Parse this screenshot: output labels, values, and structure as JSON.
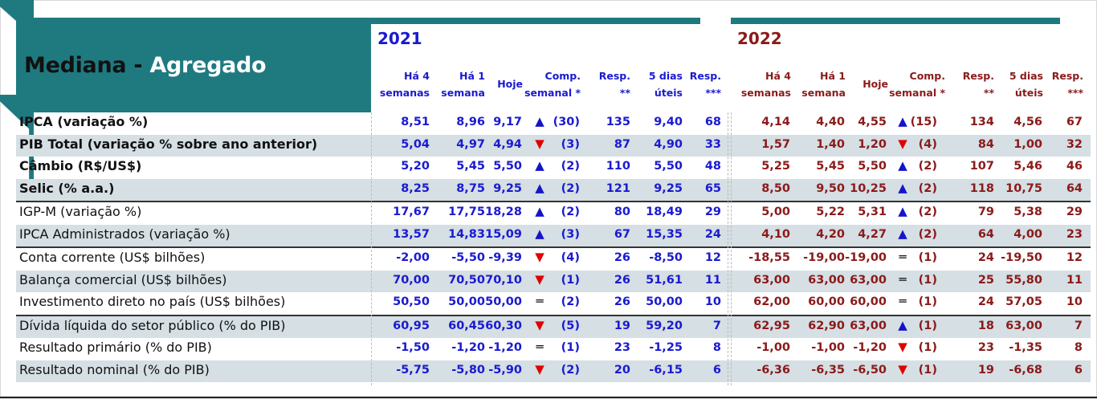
{
  "header": {
    "title_main": "Mediana - ",
    "title_accent": "Agregado",
    "year_a": "2021",
    "year_b": "2022",
    "columns": [
      {
        "l1": "Há 4",
        "l2": "semanas"
      },
      {
        "l1": "Há 1",
        "l2": "semana"
      },
      {
        "l1": "Hoje",
        "l2": ""
      },
      {
        "l1": "Comp.",
        "l2": "semanal *"
      },
      {
        "l1": "Resp.",
        "l2": "**"
      },
      {
        "l1": "5 dias",
        "l2": "úteis"
      },
      {
        "l1": "Resp.",
        "l2": "***"
      }
    ]
  },
  "colors": {
    "header_teal": "#1f7a80",
    "year_2021": "#1a1ad0",
    "year_2022": "#8b1a1a",
    "row_shade": "#d5dfe4",
    "arrow_up": "#1414c8",
    "arrow_down": "#e00000"
  },
  "rows": [
    {
      "label": "IPCA (variação %)",
      "bold": true,
      "a": [
        "8,51",
        "8,96",
        "9,17",
        "up",
        "(30)",
        "135",
        "9,40",
        "68"
      ],
      "b": [
        "4,14",
        "4,40",
        "4,55",
        "up",
        "(15)",
        "134",
        "4,56",
        "67"
      ]
    },
    {
      "label": "PIB Total (variação % sobre ano anterior)",
      "bold": true,
      "a": [
        "5,04",
        "4,97",
        "4,94",
        "down",
        "(3)",
        "87",
        "4,90",
        "33"
      ],
      "b": [
        "1,57",
        "1,40",
        "1,20",
        "down",
        "(4)",
        "84",
        "1,00",
        "32"
      ]
    },
    {
      "label": "Câmbio (R$/US$)",
      "bold": true,
      "a": [
        "5,20",
        "5,45",
        "5,50",
        "up",
        "(2)",
        "110",
        "5,50",
        "48"
      ],
      "b": [
        "5,25",
        "5,45",
        "5,50",
        "up",
        "(2)",
        "107",
        "5,46",
        "46"
      ]
    },
    {
      "label": "Selic (% a.a.)",
      "bold": true,
      "a": [
        "8,25",
        "8,75",
        "9,25",
        "up",
        "(2)",
        "121",
        "9,25",
        "65"
      ],
      "b": [
        "8,50",
        "9,50",
        "10,25",
        "up",
        "(2)",
        "118",
        "10,75",
        "64"
      ]
    },
    {
      "label": "IGP-M (variação %)",
      "bold": false,
      "a": [
        "17,67",
        "17,75",
        "18,28",
        "up",
        "(2)",
        "80",
        "18,49",
        "29"
      ],
      "b": [
        "5,00",
        "5,22",
        "5,31",
        "up",
        "(2)",
        "79",
        "5,38",
        "29"
      ]
    },
    {
      "label": "IPCA Administrados (variação %)",
      "bold": false,
      "a": [
        "13,57",
        "14,83",
        "15,09",
        "up",
        "(3)",
        "67",
        "15,35",
        "24"
      ],
      "b": [
        "4,10",
        "4,20",
        "4,27",
        "up",
        "(2)",
        "64",
        "4,00",
        "23"
      ]
    },
    {
      "label": "Conta corrente (US$ bilhões)",
      "bold": false,
      "a": [
        "-2,00",
        "-5,50",
        "-9,39",
        "down",
        "(4)",
        "26",
        "-8,50",
        "12"
      ],
      "b": [
        "-18,55",
        "-19,00",
        "-19,00",
        "eq",
        "(1)",
        "24",
        "-19,50",
        "12"
      ]
    },
    {
      "label": "Balança comercial (US$ bilhões)",
      "bold": false,
      "a": [
        "70,00",
        "70,50",
        "70,10",
        "down",
        "(1)",
        "26",
        "51,61",
        "11"
      ],
      "b": [
        "63,00",
        "63,00",
        "63,00",
        "eq",
        "(1)",
        "25",
        "55,80",
        "11"
      ]
    },
    {
      "label": "Investimento direto no país (US$ bilhões)",
      "bold": false,
      "a": [
        "50,50",
        "50,00",
        "50,00",
        "eq",
        "(2)",
        "26",
        "50,00",
        "10"
      ],
      "b": [
        "62,00",
        "60,00",
        "60,00",
        "eq",
        "(1)",
        "24",
        "57,05",
        "10"
      ]
    },
    {
      "label": "Dívida líquida do setor público (% do PIB)",
      "bold": false,
      "a": [
        "60,95",
        "60,45",
        "60,30",
        "down",
        "(5)",
        "19",
        "59,20",
        "7"
      ],
      "b": [
        "62,95",
        "62,90",
        "63,00",
        "up",
        "(1)",
        "18",
        "63,00",
        "7"
      ]
    },
    {
      "label": "Resultado primário (% do PIB)",
      "bold": false,
      "a": [
        "-1,50",
        "-1,20",
        "-1,20",
        "eq",
        "(1)",
        "23",
        "-1,25",
        "8"
      ],
      "b": [
        "-1,00",
        "-1,00",
        "-1,20",
        "down",
        "(1)",
        "23",
        "-1,35",
        "8"
      ]
    },
    {
      "label": "Resultado nominal (% do PIB)",
      "bold": false,
      "a": [
        "-5,75",
        "-5,80",
        "-5,90",
        "down",
        "(2)",
        "20",
        "-6,15",
        "6"
      ],
      "b": [
        "-6,36",
        "-6,35",
        "-6,50",
        "down",
        "(1)",
        "19",
        "-6,68",
        "6"
      ]
    }
  ]
}
